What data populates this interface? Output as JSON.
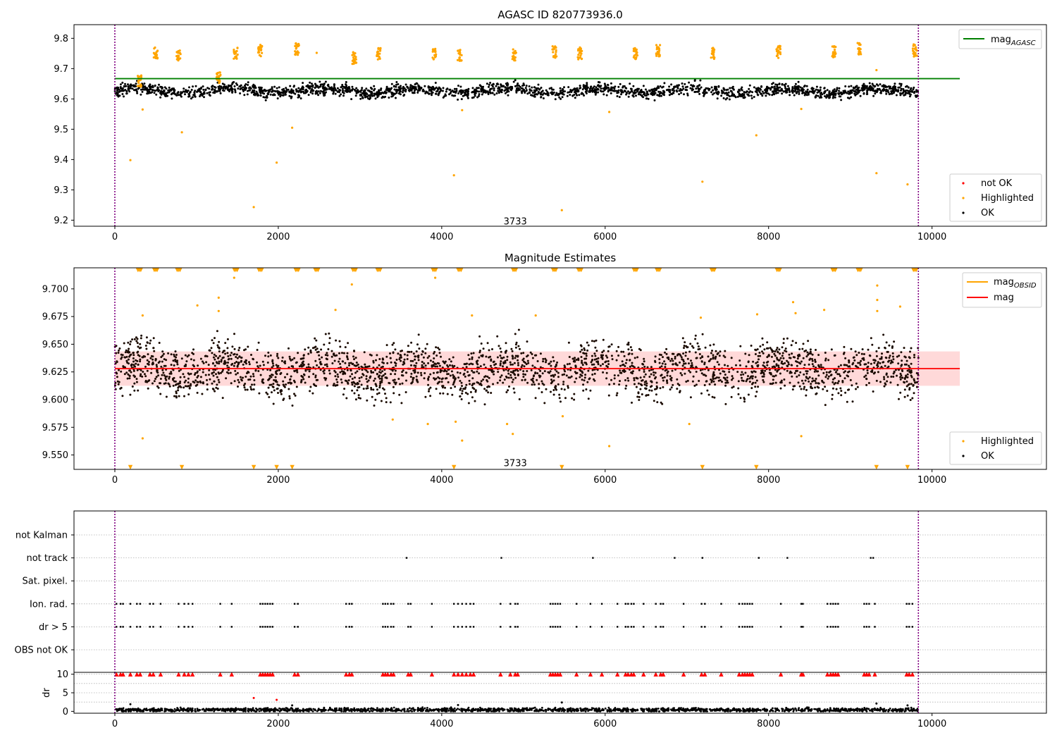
{
  "chart_data": [
    {
      "type": "scatter",
      "title": "AGASC ID 820773936.0",
      "xlabel": "",
      "ylabel": "",
      "xlim": [
        -500,
        11400
      ],
      "ylim": [
        9.18,
        9.845
      ],
      "xticks": [
        "0",
        "2000",
        "4000",
        "6000",
        "8000",
        "10000"
      ],
      "xtick_values": [
        0,
        2000,
        4000,
        6000,
        8000,
        10000
      ],
      "yticks": [
        "9.2",
        "9.3",
        "9.4",
        "9.5",
        "9.6",
        "9.7",
        "9.8"
      ],
      "ytick_values": [
        9.2,
        9.3,
        9.4,
        9.5,
        9.6,
        9.7,
        9.8
      ],
      "grid": false,
      "obs_boundaries": [
        0,
        9833
      ],
      "obsid_label": {
        "text": "3733",
        "x": 4900,
        "y": 9.19
      },
      "mag_agasc": {
        "value": 9.667,
        "x_range": [
          0,
          10340
        ],
        "color": "#008000"
      },
      "ok_band": {
        "x_range": [
          0,
          9833
        ],
        "center": 9.627,
        "spread": 0.014
      },
      "highlight_clusters": [
        {
          "x": 300,
          "y": 9.66
        },
        {
          "x": 500,
          "y": 9.75
        },
        {
          "x": 780,
          "y": 9.745
        },
        {
          "x": 1270,
          "y": 9.67
        },
        {
          "x": 1480,
          "y": 9.75
        },
        {
          "x": 1780,
          "y": 9.76
        },
        {
          "x": 2230,
          "y": 9.765
        },
        {
          "x": 2930,
          "y": 9.735
        },
        {
          "x": 3230,
          "y": 9.75
        },
        {
          "x": 3910,
          "y": 9.75
        },
        {
          "x": 4220,
          "y": 9.745
        },
        {
          "x": 4890,
          "y": 9.745
        },
        {
          "x": 5380,
          "y": 9.755
        },
        {
          "x": 5690,
          "y": 9.75
        },
        {
          "x": 6370,
          "y": 9.75
        },
        {
          "x": 6650,
          "y": 9.76
        },
        {
          "x": 7320,
          "y": 9.75
        },
        {
          "x": 8120,
          "y": 9.755
        },
        {
          "x": 8800,
          "y": 9.755
        },
        {
          "x": 9110,
          "y": 9.765
        },
        {
          "x": 9790,
          "y": 9.76
        }
      ],
      "highlight_outliers": [
        {
          "x": 190,
          "y": 9.398
        },
        {
          "x": 340,
          "y": 9.565
        },
        {
          "x": 820,
          "y": 9.49
        },
        {
          "x": 1700,
          "y": 9.243
        },
        {
          "x": 1980,
          "y": 9.39
        },
        {
          "x": 2170,
          "y": 9.505
        },
        {
          "x": 2470,
          "y": 9.752
        },
        {
          "x": 4150,
          "y": 9.348
        },
        {
          "x": 4250,
          "y": 9.563
        },
        {
          "x": 5470,
          "y": 9.233
        },
        {
          "x": 6050,
          "y": 9.557
        },
        {
          "x": 7190,
          "y": 9.327
        },
        {
          "x": 7850,
          "y": 9.48
        },
        {
          "x": 8400,
          "y": 9.567
        },
        {
          "x": 9320,
          "y": 9.355
        },
        {
          "x": 9320,
          "y": 9.695
        },
        {
          "x": 9700,
          "y": 9.318
        }
      ],
      "series": [
        {
          "name": "not OK",
          "color": "#ff0000"
        },
        {
          "name": "Highlighted",
          "color": "#ffa500"
        },
        {
          "name": "OK",
          "color": "#000000"
        }
      ],
      "legends": {
        "line_legend": {
          "placement": "upper right",
          "label": "mag",
          "subscript": "AGASC"
        },
        "marker_legend": {
          "placement": "lower right"
        }
      }
    },
    {
      "type": "scatter",
      "title": "Magnitude Estimates",
      "xlabel": "",
      "ylabel": "",
      "xlim": [
        -500,
        11400
      ],
      "ylim": [
        9.537,
        9.719
      ],
      "xticks": [
        "0",
        "2000",
        "4000",
        "6000",
        "8000",
        "10000"
      ],
      "xtick_values": [
        0,
        2000,
        4000,
        6000,
        8000,
        10000
      ],
      "yticks": [
        "9.550",
        "9.575",
        "9.600",
        "9.625",
        "9.650",
        "9.675",
        "9.700"
      ],
      "ytick_values": [
        9.55,
        9.575,
        9.6,
        9.625,
        9.65,
        9.675,
        9.7
      ],
      "grid": false,
      "obs_boundaries": [
        0,
        9833
      ],
      "obsid_label": {
        "text": "3733",
        "x": 4900,
        "y": 9.541
      },
      "mag": {
        "value": 9.628,
        "x_range": [
          0,
          10340
        ],
        "color": "#ff0000"
      },
      "mag_obsid": {
        "value": 9.628,
        "color": "#ffa500"
      },
      "error_band": {
        "range": [
          9.6125,
          9.6435
        ],
        "x_range": [
          0,
          10340
        ],
        "color": "#ffcccc"
      },
      "ok_band": {
        "x_range": [
          0,
          9833
        ],
        "center": 9.627,
        "spread": 0.013
      },
      "clipped_high": [
        300,
        500,
        780,
        1480,
        1780,
        2230,
        2470,
        2930,
        3230,
        3910,
        4220,
        4890,
        5380,
        5690,
        6370,
        6650,
        7320,
        8120,
        8800,
        9110,
        9790
      ],
      "clipped_low": [
        190,
        820,
        1700,
        1980,
        2170,
        4150,
        5470,
        7190,
        7850,
        9320,
        9700
      ],
      "highlight_outliers": [
        {
          "x": 340,
          "y": 9.565
        },
        {
          "x": 340,
          "y": 9.676
        },
        {
          "x": 1010,
          "y": 9.685
        },
        {
          "x": 1270,
          "y": 9.692
        },
        {
          "x": 1270,
          "y": 9.68
        },
        {
          "x": 1460,
          "y": 9.71
        },
        {
          "x": 2700,
          "y": 9.681
        },
        {
          "x": 2900,
          "y": 9.704
        },
        {
          "x": 3400,
          "y": 9.582
        },
        {
          "x": 3830,
          "y": 9.578
        },
        {
          "x": 3920,
          "y": 9.71
        },
        {
          "x": 4170,
          "y": 9.58
        },
        {
          "x": 4250,
          "y": 9.563
        },
        {
          "x": 4370,
          "y": 9.676
        },
        {
          "x": 4800,
          "y": 9.578
        },
        {
          "x": 4870,
          "y": 9.569
        },
        {
          "x": 5150,
          "y": 9.676
        },
        {
          "x": 5480,
          "y": 9.585
        },
        {
          "x": 6050,
          "y": 9.558
        },
        {
          "x": 7030,
          "y": 9.578
        },
        {
          "x": 7170,
          "y": 9.674
        },
        {
          "x": 7860,
          "y": 9.677
        },
        {
          "x": 8300,
          "y": 9.688
        },
        {
          "x": 8330,
          "y": 9.678
        },
        {
          "x": 8400,
          "y": 9.567
        },
        {
          "x": 8680,
          "y": 9.681
        },
        {
          "x": 9330,
          "y": 9.703
        },
        {
          "x": 9330,
          "y": 9.69
        },
        {
          "x": 9330,
          "y": 9.68
        },
        {
          "x": 9610,
          "y": 9.684
        }
      ],
      "series": [
        {
          "name": "Highlighted",
          "color": "#ffa500"
        },
        {
          "name": "OK",
          "color": "#000000"
        }
      ],
      "legends": {
        "line_legend": {
          "placement": "upper right",
          "entries": [
            {
              "label": "mag",
              "subscript": "OBSID",
              "color": "#ffa500"
            },
            {
              "label": "mag",
              "subscript": "",
              "color": "#ff0000"
            }
          ]
        },
        "marker_legend": {
          "placement": "lower right"
        }
      }
    },
    {
      "type": "scatter",
      "title": "",
      "xlabel": "",
      "ylabel": "",
      "xlim": [
        -500,
        11400
      ],
      "categories": [
        "not Kalman",
        "not track",
        "Sat. pixel.",
        "Ion. rad.",
        "dr > 5",
        "OBS not OK"
      ],
      "grid": true,
      "obs_boundaries": [
        0,
        9833
      ],
      "flags": {
        "not Kalman": [],
        "not track": [
          3570,
          4730,
          5850,
          6850,
          7190,
          7880,
          8230,
          9250,
          9280
        ],
        "Sat. pixel.": [],
        "Ion. rad.": [
          20,
          70,
          100,
          190,
          270,
          310,
          430,
          470,
          560,
          780,
          850,
          900,
          950,
          1290,
          1430,
          1780,
          1810,
          1840,
          1870,
          1900,
          1930,
          2200,
          2240,
          2830,
          2870,
          2900,
          3280,
          3310,
          3340,
          3380,
          3410,
          3590,
          3620,
          3880,
          4150,
          4200,
          4250,
          4300,
          4350,
          4390,
          4720,
          4840,
          4900,
          4930,
          5330,
          5360,
          5390,
          5420,
          5450,
          5650,
          5820,
          5960,
          6150,
          6250,
          6280,
          6320,
          6350,
          6470,
          6620,
          6680,
          6710,
          6960,
          7180,
          7220,
          7420,
          7640,
          7680,
          7710,
          7740,
          7770,
          7800,
          8150,
          8400,
          8420,
          8720,
          8760,
          8790,
          8820,
          8850,
          9170,
          9200,
          9230,
          9300,
          9690,
          9720,
          9760
        ],
        "dr > 5": [
          20,
          70,
          100,
          190,
          270,
          310,
          430,
          470,
          560,
          780,
          850,
          900,
          950,
          1290,
          1430,
          1780,
          1810,
          1840,
          1870,
          1900,
          1930,
          2200,
          2240,
          2830,
          2870,
          2900,
          3280,
          3310,
          3340,
          3380,
          3410,
          3590,
          3620,
          3880,
          4150,
          4200,
          4250,
          4300,
          4350,
          4390,
          4720,
          4840,
          4900,
          4930,
          5330,
          5360,
          5390,
          5420,
          5450,
          5650,
          5820,
          5960,
          6150,
          6250,
          6280,
          6320,
          6350,
          6470,
          6620,
          6680,
          6710,
          6960,
          7180,
          7220,
          7420,
          7640,
          7680,
          7710,
          7740,
          7770,
          7800,
          8150,
          8400,
          8420,
          8720,
          8760,
          8790,
          8820,
          8850,
          9170,
          9200,
          9230,
          9300,
          9690,
          9720,
          9760
        ],
        "OBS not OK": []
      }
    },
    {
      "type": "scatter",
      "title": "",
      "xlabel": "",
      "ylabel": "dr",
      "xlim": [
        -500,
        11400
      ],
      "ylim": [
        -0.5,
        10.5
      ],
      "xticks": [
        "0",
        "2000",
        "4000",
        "6000",
        "8000",
        "10000"
      ],
      "xtick_values": [
        0,
        2000,
        4000,
        6000,
        8000,
        10000
      ],
      "yticks": [
        "0",
        "5",
        "10"
      ],
      "ytick_values": [
        0,
        5,
        10
      ],
      "grid": true,
      "obs_boundaries": [
        0,
        9833
      ],
      "baseline": {
        "x_range": [
          0,
          9833
        ],
        "center": 0.4,
        "spread": 0.25
      },
      "dr_clipped_x": [
        20,
        70,
        100,
        190,
        270,
        310,
        430,
        470,
        560,
        780,
        850,
        900,
        950,
        1290,
        1430,
        1780,
        1810,
        1840,
        1870,
        1900,
        1930,
        2200,
        2240,
        2830,
        2870,
        2900,
        3280,
        3310,
        3340,
        3380,
        3410,
        3590,
        3620,
        3880,
        4150,
        4200,
        4250,
        4300,
        4350,
        4390,
        4720,
        4840,
        4900,
        4930,
        5330,
        5360,
        5390,
        5420,
        5450,
        5650,
        5820,
        5960,
        6150,
        6250,
        6280,
        6320,
        6350,
        6470,
        6620,
        6680,
        6710,
        6960,
        7180,
        7220,
        7420,
        7640,
        7680,
        7710,
        7740,
        7770,
        7800,
        8150,
        8400,
        8420,
        8720,
        8760,
        8790,
        8820,
        8850,
        9170,
        9200,
        9230,
        9300,
        9690,
        9720,
        9760
      ],
      "dr_outliers": [
        {
          "x": 1700,
          "y": 3.6,
          "color": "#ff0000"
        },
        {
          "x": 1980,
          "y": 3.1,
          "color": "#ff0000"
        },
        {
          "x": 190,
          "y": 1.9,
          "color": "#000000"
        },
        {
          "x": 2170,
          "y": 1.6,
          "color": "#000000"
        },
        {
          "x": 4200,
          "y": 1.7,
          "color": "#000000"
        },
        {
          "x": 5470,
          "y": 2.4,
          "color": "#000000"
        },
        {
          "x": 9320,
          "y": 2.1,
          "color": "#000000"
        },
        {
          "x": 9700,
          "y": 1.6,
          "color": "#000000"
        }
      ]
    }
  ]
}
